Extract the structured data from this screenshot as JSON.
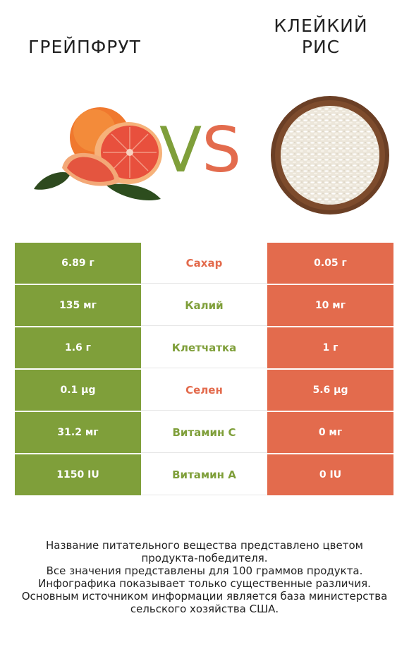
{
  "header": {
    "left_title": "ГРЕЙПФРУТ",
    "right_title_line1": "КЛЕЙКИЙ",
    "right_title_line2": "РИС",
    "vs_v": "V",
    "vs_s": "S"
  },
  "colors": {
    "left_accent": "#7f9f3a",
    "right_accent": "#e36b4d"
  },
  "rows": [
    {
      "nutrient": "Сахар",
      "left": "6.89 г",
      "right": "0.05 г",
      "winner": "right"
    },
    {
      "nutrient": "Калий",
      "left": "135 мг",
      "right": "10 мг",
      "winner": "left"
    },
    {
      "nutrient": "Клетчатка",
      "left": "1.6 г",
      "right": "1 г",
      "winner": "left"
    },
    {
      "nutrient": "Селен",
      "left": "0.1 µg",
      "right": "5.6 µg",
      "winner": "right"
    },
    {
      "nutrient": "Витамин C",
      "left": "31.2 мг",
      "right": "0 мг",
      "winner": "left"
    },
    {
      "nutrient": "Витамин A",
      "left": "1150 IU",
      "right": "0 IU",
      "winner": "left"
    }
  ],
  "footer": {
    "line1": "Название питательного вещества представлено цветом",
    "line2": "продукта-победителя.",
    "line3": "Все значения представлены для 100 граммов продукта.",
    "line4": "Инфографика показывает только существенные различия.",
    "line5": "Основным источником информации является база министерства",
    "line6": "сельского хозяйства США."
  },
  "images": {
    "left_image": "grapefruit-image",
    "right_image": "sticky-rice-bowl-image"
  }
}
